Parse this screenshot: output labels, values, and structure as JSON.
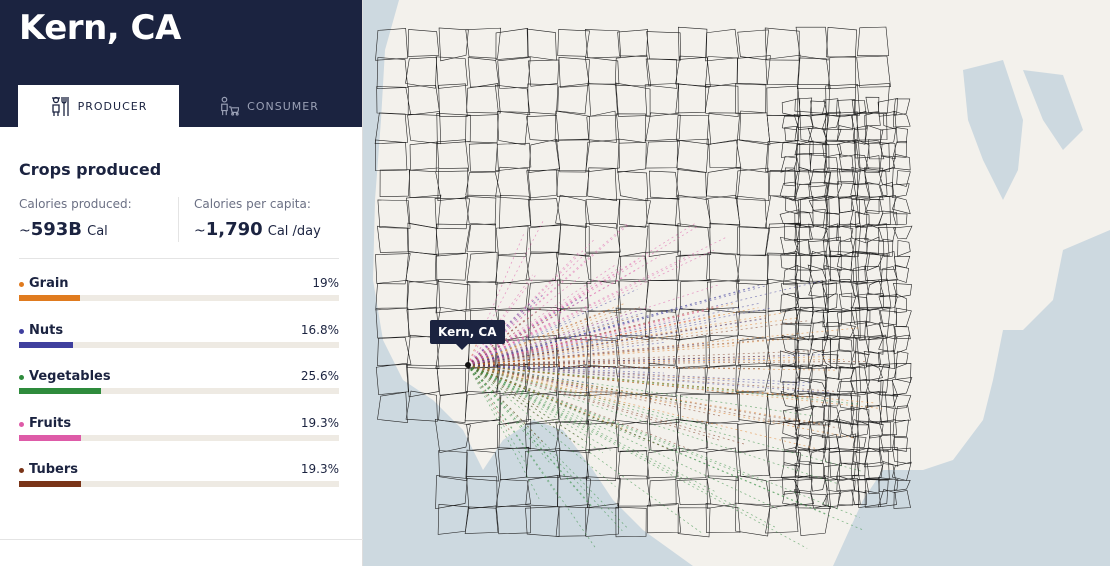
{
  "header": {
    "title": "Kern, CA"
  },
  "tabs": [
    {
      "label": "PRODUCER",
      "active": true,
      "icon": "farmer-icon"
    },
    {
      "label": "CONSUMER",
      "active": false,
      "icon": "shopper-cart-icon"
    }
  ],
  "section": {
    "title": "Crops produced",
    "calories_produced": {
      "label": "Calories produced:",
      "prefix": "~",
      "value": "593B",
      "unit": "Cal"
    },
    "calories_per_capita": {
      "label": "Calories per capita:",
      "prefix": "~",
      "value": "1,790",
      "unit": "Cal /day"
    }
  },
  "crops": [
    {
      "name": "Grain",
      "percent_label": "19%",
      "percent": 19,
      "color": "#e07b1f"
    },
    {
      "name": "Nuts",
      "percent_label": "16.8%",
      "percent": 16.8,
      "color": "#3f3f9e"
    },
    {
      "name": "Vegetables",
      "percent_label": "25.6%",
      "percent": 25.6,
      "color": "#2e8b3c"
    },
    {
      "name": "Fruits",
      "percent_label": "19.3%",
      "percent": 19.3,
      "color": "#de5ba8"
    },
    {
      "name": "Tubers",
      "percent_label": "19.3%",
      "percent": 19.3,
      "color": "#7a3418"
    }
  ],
  "map": {
    "tooltip": "Kern, CA",
    "land_color": "#f3f1ec",
    "water_color": "#cdd9e0",
    "border_color": "#111111"
  }
}
